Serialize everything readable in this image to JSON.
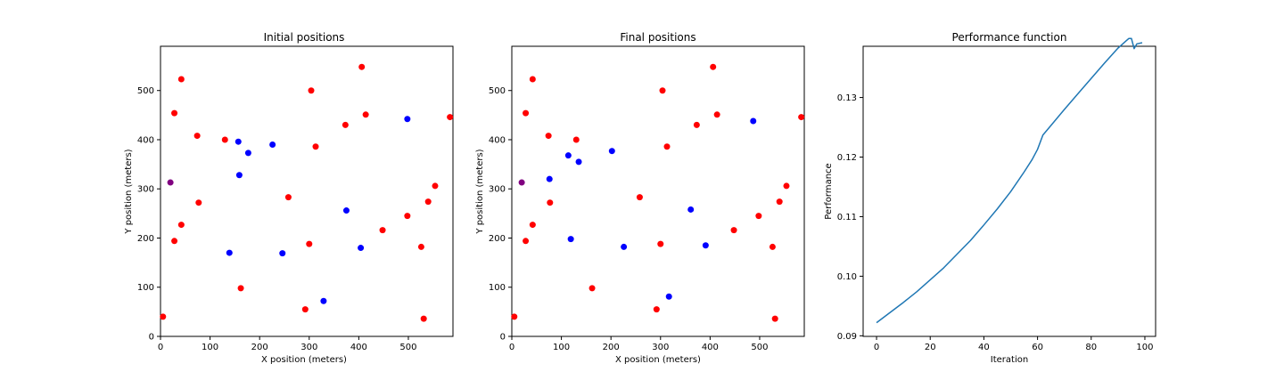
{
  "chart_data": [
    {
      "type": "scatter",
      "title": "Initial positions",
      "xlabel": "X position (meters)",
      "ylabel": "Y position (meters)",
      "xlim": [
        0,
        590
      ],
      "ylim": [
        0,
        590
      ],
      "xticks": [
        0,
        100,
        200,
        300,
        400,
        500
      ],
      "yticks": [
        0,
        100,
        200,
        300,
        400,
        500
      ],
      "grid": false,
      "colors": {
        "red": "#ff0000",
        "blue": "#0000ff",
        "purple": "#800080"
      },
      "points": {
        "red": [
          [
            5,
            40
          ],
          [
            28,
            454
          ],
          [
            28,
            194
          ],
          [
            42,
            523
          ],
          [
            42,
            227
          ],
          [
            74,
            408
          ],
          [
            77,
            272
          ],
          [
            130,
            400
          ],
          [
            162,
            98
          ],
          [
            258,
            283
          ],
          [
            292,
            55
          ],
          [
            300,
            188
          ],
          [
            304,
            500
          ],
          [
            313,
            386
          ],
          [
            373,
            430
          ],
          [
            406,
            548
          ],
          [
            414,
            451
          ],
          [
            448,
            216
          ],
          [
            498,
            245
          ],
          [
            526,
            182
          ],
          [
            531,
            36
          ],
          [
            540,
            274
          ],
          [
            554,
            306
          ],
          [
            584,
            446
          ]
        ],
        "blue": [
          [
            139,
            170
          ],
          [
            157,
            396
          ],
          [
            159,
            328
          ],
          [
            177,
            373
          ],
          [
            226,
            390
          ],
          [
            246,
            169
          ],
          [
            329,
            72
          ],
          [
            375,
            256
          ],
          [
            404,
            180
          ],
          [
            498,
            442
          ]
        ],
        "purple": [
          [
            20,
            313
          ]
        ]
      }
    },
    {
      "type": "scatter",
      "title": "Final positions",
      "xlabel": "X position (meters)",
      "ylabel": "Y position (meters)",
      "xlim": [
        0,
        590
      ],
      "ylim": [
        0,
        590
      ],
      "xticks": [
        0,
        100,
        200,
        300,
        400,
        500
      ],
      "yticks": [
        0,
        100,
        200,
        300,
        400,
        500
      ],
      "grid": false,
      "colors": {
        "red": "#ff0000",
        "blue": "#0000ff",
        "purple": "#800080"
      },
      "points": {
        "red": [
          [
            5,
            40
          ],
          [
            28,
            454
          ],
          [
            28,
            194
          ],
          [
            42,
            523
          ],
          [
            42,
            227
          ],
          [
            74,
            408
          ],
          [
            77,
            272
          ],
          [
            130,
            400
          ],
          [
            162,
            98
          ],
          [
            258,
            283
          ],
          [
            292,
            55
          ],
          [
            300,
            188
          ],
          [
            304,
            500
          ],
          [
            313,
            386
          ],
          [
            373,
            430
          ],
          [
            406,
            548
          ],
          [
            414,
            451
          ],
          [
            448,
            216
          ],
          [
            498,
            245
          ],
          [
            526,
            182
          ],
          [
            531,
            36
          ],
          [
            540,
            274
          ],
          [
            554,
            306
          ],
          [
            584,
            446
          ]
        ],
        "blue": [
          [
            76,
            320
          ],
          [
            114,
            368
          ],
          [
            119,
            198
          ],
          [
            135,
            355
          ],
          [
            202,
            377
          ],
          [
            226,
            182
          ],
          [
            317,
            81
          ],
          [
            361,
            258
          ],
          [
            391,
            185
          ],
          [
            487,
            438
          ]
        ],
        "purple": [
          [
            20,
            313
          ]
        ]
      }
    },
    {
      "type": "line",
      "title": "Performance function",
      "xlabel": "Iteration",
      "ylabel": "Performance",
      "xlim": [
        -5,
        104
      ],
      "ylim": [
        0.0899,
        0.1386
      ],
      "xticks": [
        0,
        20,
        40,
        60,
        80,
        100
      ],
      "yticks": [
        0.09,
        0.1,
        0.11,
        0.12,
        0.13
      ],
      "ytick_labels": [
        "0.09",
        "0.10",
        "0.11",
        "0.12",
        "0.13"
      ],
      "grid": false,
      "line_color": "#1f77b4",
      "series": [
        {
          "x": [
            0,
            5,
            10,
            15,
            20,
            25,
            30,
            35,
            40,
            45,
            50,
            55,
            58,
            60,
            62,
            65,
            70,
            75,
            80,
            85,
            90,
            93,
            94,
            95,
            96,
            97,
            99
          ],
          "y": [
            0.0922,
            0.0939,
            0.0956,
            0.0974,
            0.0994,
            0.1014,
            0.1037,
            0.106,
            0.1086,
            0.1113,
            0.1142,
            0.1175,
            0.1196,
            0.1213,
            0.1237,
            0.1253,
            0.128,
            0.1306,
            0.1332,
            0.1358,
            0.1383,
            0.1395,
            0.1399,
            0.1399,
            0.1382,
            0.139,
            0.1392
          ]
        }
      ]
    }
  ]
}
